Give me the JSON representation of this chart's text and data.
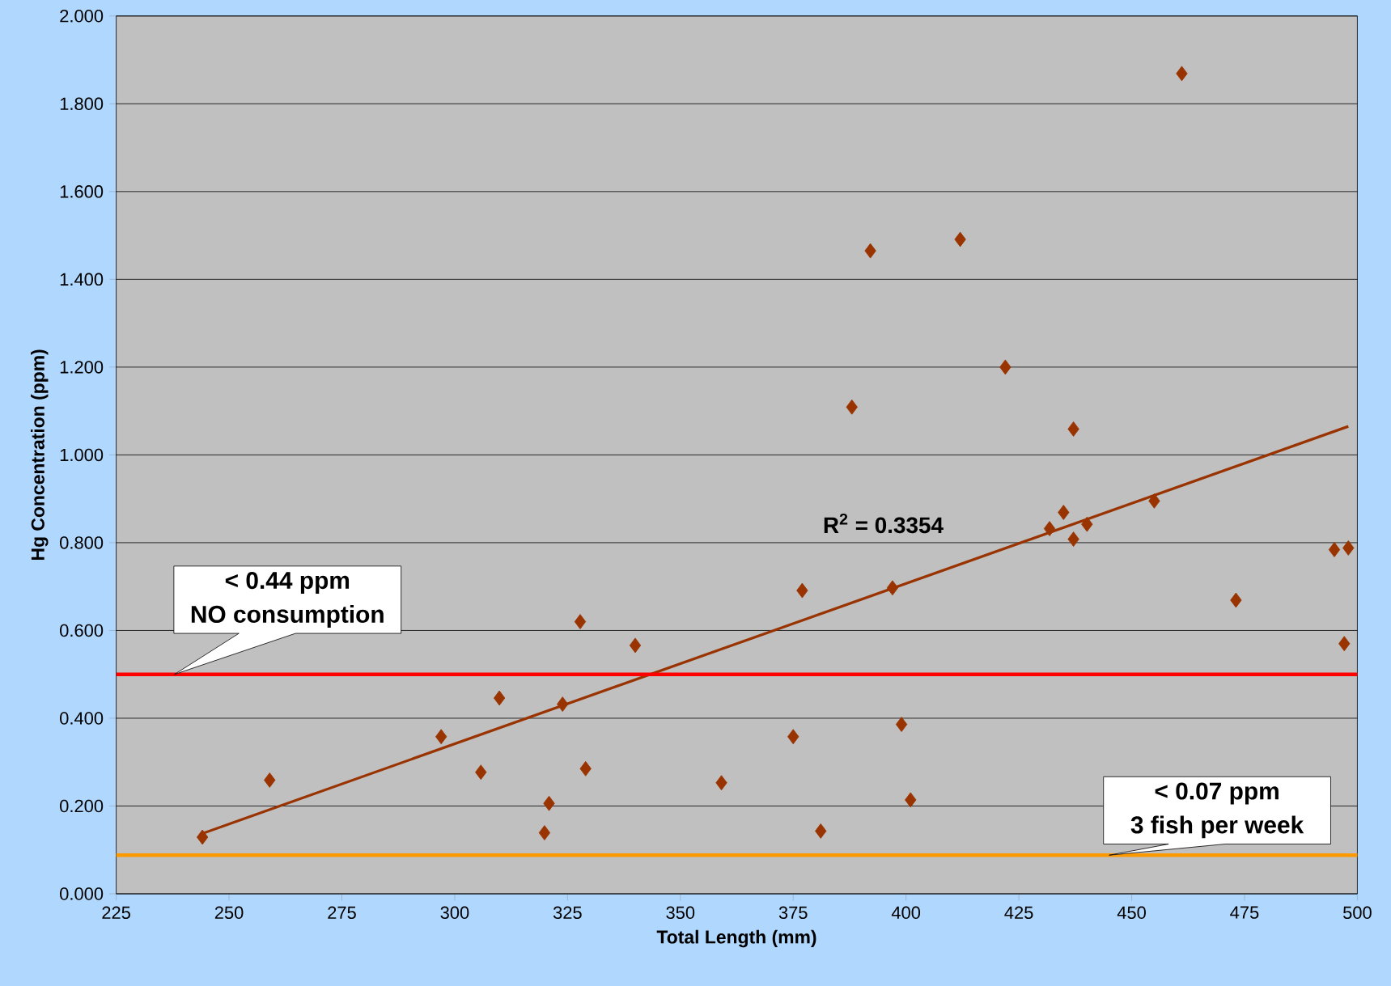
{
  "chart_data": {
    "type": "scatter",
    "xlabel": "Total Length (mm)",
    "ylabel": "Hg Concentration (ppm)",
    "xlim": [
      225,
      500
    ],
    "xticks": [
      225,
      250,
      275,
      300,
      325,
      350,
      375,
      400,
      425,
      450,
      475,
      500
    ],
    "ylim": [
      0,
      2
    ],
    "yticks": [
      {
        "value": 0,
        "label": "0.000"
      },
      {
        "value": 0.2,
        "label": "0.200"
      },
      {
        "value": 0.4,
        "label": "0.400"
      },
      {
        "value": 0.6,
        "label": "0.600"
      },
      {
        "value": 0.8,
        "label": "0.800"
      },
      {
        "value": 1,
        "label": "1.000"
      },
      {
        "value": 1.2,
        "label": "1.200"
      },
      {
        "value": 1.4,
        "label": "1.400"
      },
      {
        "value": 1.6,
        "label": "1.600"
      },
      {
        "value": 1.8,
        "label": "1.800"
      },
      {
        "value": 2,
        "label": "2.000"
      }
    ],
    "grid": "y",
    "series": [
      {
        "color": "#993300",
        "marker": "diamond",
        "x": [
          244.1,
          259.0,
          297.0,
          305.8,
          309.9,
          319.9,
          320.9,
          323.9,
          327.8,
          329.0,
          340.0,
          359.1,
          375.0,
          377.0,
          381.1,
          388.0,
          392.1,
          397.0,
          399.0,
          401.0,
          412.0,
          422.0,
          431.8,
          434.9,
          437.1,
          437.1,
          440.1,
          455.0,
          461.1,
          473.1,
          494.9,
          497.1,
          498.0
        ],
        "values": [
          0.129,
          0.259,
          0.358,
          0.277,
          0.446,
          0.139,
          0.206,
          0.432,
          0.62,
          0.285,
          0.566,
          0.253,
          0.358,
          0.691,
          0.143,
          1.109,
          1.465,
          0.697,
          0.386,
          0.214,
          1.491,
          1.2,
          0.832,
          0.869,
          1.059,
          0.808,
          0.842,
          0.895,
          1.869,
          0.669,
          0.784,
          0.57,
          0.788
        ]
      },
      {
        "type": "line",
        "color": "#993300",
        "x": [
          244,
          498
        ],
        "values": [
          0.137,
          1.065
        ]
      }
    ],
    "ref_lines": [
      {
        "axis": "y",
        "value": 0.5,
        "color": "#ff0000"
      },
      {
        "axis": "y",
        "value": 0.088,
        "color": "#ff9900"
      }
    ],
    "annotations": [
      "< 0.44 ppm",
      "NO consumption",
      "< 0.07 ppm",
      "3 fish per week",
      "R$^{2}$ = 0.3354"
    ]
  }
}
